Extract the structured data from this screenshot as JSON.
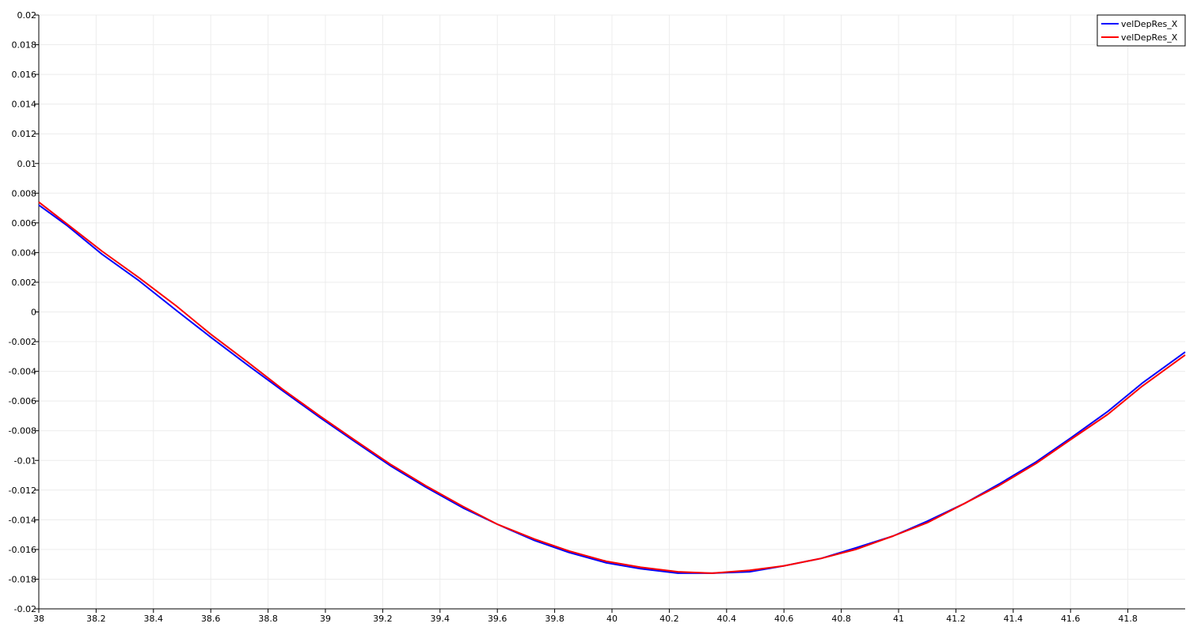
{
  "chart_data": {
    "type": "line",
    "title": "",
    "xlabel": "",
    "ylabel": "",
    "xlim": [
      38,
      42
    ],
    "ylim": [
      -0.02,
      0.02
    ],
    "grid": true,
    "legend_position": "top-right",
    "x_ticks": [
      "38",
      "38.2",
      "38.4",
      "38.6",
      "38.8",
      "39",
      "39.2",
      "39.4",
      "39.6",
      "39.8",
      "40",
      "40.2",
      "40.4",
      "40.6",
      "40.8",
      "41",
      "41.2",
      "41.4",
      "41.6",
      "41.8"
    ],
    "y_ticks": [
      "0.02",
      "0.018",
      "0.016",
      "0.014",
      "0.012",
      "0.01",
      "0.008",
      "0.006",
      "0.004",
      "0.002",
      "0",
      "-0.002",
      "-0.004",
      "-0.006",
      "-0.008",
      "-0.01",
      "-0.012",
      "-0.014",
      "-0.016",
      "-0.018",
      "-0.02"
    ],
    "series": [
      {
        "name": "velDepRes_X",
        "color": "#0000ff",
        "x": [
          38.0,
          38.1,
          38.22,
          38.35,
          38.48,
          38.6,
          38.73,
          38.85,
          38.98,
          39.1,
          39.23,
          39.35,
          39.48,
          39.6,
          39.73,
          39.85,
          39.98,
          40.1,
          40.23,
          40.35,
          40.48,
          40.6,
          40.73,
          40.85,
          40.98,
          41.1,
          41.23,
          41.35,
          41.48,
          41.6,
          41.73,
          41.85,
          42.0
        ],
        "y": [
          0.0072,
          0.0058,
          0.0039,
          0.0021,
          0.0001,
          -0.0017,
          -0.0036,
          -0.0053,
          -0.0071,
          -0.0087,
          -0.0104,
          -0.0118,
          -0.0132,
          -0.0143,
          -0.0154,
          -0.0162,
          -0.0169,
          -0.0173,
          -0.0176,
          -0.0176,
          -0.0175,
          -0.0171,
          -0.0166,
          -0.0159,
          -0.0151,
          -0.0141,
          -0.0129,
          -0.0116,
          -0.0101,
          -0.0085,
          -0.0067,
          -0.0048,
          -0.0027
        ]
      },
      {
        "name": "velDepRes_X",
        "color": "#ff0000",
        "x": [
          38.0,
          38.1,
          38.22,
          38.35,
          38.48,
          38.6,
          38.73,
          38.85,
          38.98,
          39.1,
          39.23,
          39.35,
          39.48,
          39.6,
          39.73,
          39.85,
          39.98,
          40.1,
          40.23,
          40.35,
          40.48,
          40.6,
          40.73,
          40.85,
          40.98,
          41.1,
          41.23,
          41.35,
          41.48,
          41.6,
          41.73,
          41.85,
          42.0
        ],
        "y": [
          0.0074,
          0.0059,
          0.0041,
          0.0023,
          0.0004,
          -0.0015,
          -0.0034,
          -0.0052,
          -0.007,
          -0.0086,
          -0.0103,
          -0.0117,
          -0.0131,
          -0.0143,
          -0.0153,
          -0.0161,
          -0.0168,
          -0.0172,
          -0.0175,
          -0.0176,
          -0.0174,
          -0.0171,
          -0.0166,
          -0.016,
          -0.0151,
          -0.0142,
          -0.0129,
          -0.0117,
          -0.0102,
          -0.0086,
          -0.0069,
          -0.005,
          -0.0029
        ]
      }
    ]
  }
}
